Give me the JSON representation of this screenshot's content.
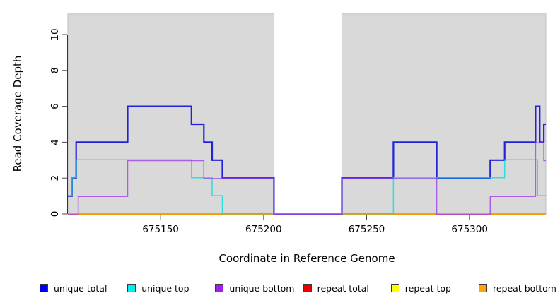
{
  "figure": {
    "background": "#ffffff",
    "plot_background": "#d9d9d9",
    "axis_color": "#333333",
    "tick_color": "#4d4d4d"
  },
  "chart_data": {
    "type": "line",
    "subtype": "step",
    "title": "",
    "xlabel": "Coordinate in Reference Genome",
    "ylabel": "Read Coverage Depth",
    "xlim": [
      675105,
      675337
    ],
    "ylim": [
      0,
      11.15
    ],
    "x_ticks": [
      675150,
      675200,
      675250,
      675300
    ],
    "y_ticks": [
      0,
      2,
      4,
      6,
      8,
      10
    ],
    "grid": false,
    "legend_position": "bottom",
    "plot_background": "#d9d9d9",
    "masked_white_region": {
      "x_start": 675205,
      "x_end": 675238
    },
    "series": [
      {
        "name": "unique total",
        "swatch_color": "#0000ee",
        "line_color": "#2222dd",
        "line_width": 2.2,
        "opacity": 1,
        "points": [
          [
            675105,
            1
          ],
          [
            675107,
            2
          ],
          [
            675109,
            4
          ],
          [
            675134,
            6
          ],
          [
            675165,
            5
          ],
          [
            675171,
            4
          ],
          [
            675175,
            3
          ],
          [
            675180,
            2
          ],
          [
            675205,
            0
          ],
          [
            675238,
            2
          ],
          [
            675263,
            4
          ],
          [
            675284,
            2
          ],
          [
            675310,
            3
          ],
          [
            675317,
            4
          ],
          [
            675332,
            6
          ],
          [
            675334,
            4
          ],
          [
            675336,
            5
          ],
          [
            675337,
            5
          ]
        ]
      },
      {
        "name": "unique top",
        "swatch_color": "#00eeee",
        "line_color": "#00dede",
        "line_width": 1.5,
        "opacity": 0.8,
        "points": [
          [
            675105,
            1
          ],
          [
            675107,
            2
          ],
          [
            675109,
            3
          ],
          [
            675165,
            2
          ],
          [
            675175,
            1
          ],
          [
            675180,
            0
          ],
          [
            675263,
            2
          ],
          [
            675317,
            3
          ],
          [
            675333,
            1
          ],
          [
            675337,
            1
          ]
        ]
      },
      {
        "name": "unique bottom",
        "swatch_color": "#a020f0",
        "line_color": "#a040e8",
        "line_width": 1.5,
        "opacity": 0.8,
        "points": [
          [
            675105,
            0
          ],
          [
            675110,
            1
          ],
          [
            675134,
            3
          ],
          [
            675171,
            2
          ],
          [
            675205,
            0
          ],
          [
            675238,
            2
          ],
          [
            675284,
            0
          ],
          [
            675310,
            1
          ],
          [
            675332,
            4
          ],
          [
            675336,
            3
          ],
          [
            675337,
            3
          ]
        ]
      },
      {
        "name": "repeat total",
        "swatch_color": "#ee0000",
        "line_color": "#dd2222",
        "line_width": 1.5,
        "opacity": 1,
        "points": [
          [
            675105,
            0
          ],
          [
            675337,
            0
          ]
        ]
      },
      {
        "name": "repeat top",
        "swatch_color": "#ffff00",
        "line_color": "#f0e000",
        "line_width": 1.5,
        "opacity": 1,
        "points": [
          [
            675105,
            0
          ],
          [
            675337,
            0
          ]
        ]
      },
      {
        "name": "repeat bottom",
        "swatch_color": "#ffa500",
        "line_color": "#ff9d00",
        "line_width": 1.8,
        "opacity": 1,
        "points": [
          [
            675105,
            0
          ],
          [
            675337,
            0
          ]
        ]
      }
    ]
  },
  "legend": {
    "items": [
      {
        "label": "unique total",
        "color": "#0000ee"
      },
      {
        "label": "unique top",
        "color": "#00eeee"
      },
      {
        "label": "unique bottom",
        "color": "#a020f0"
      },
      {
        "label": "repeat total",
        "color": "#ee0000"
      },
      {
        "label": "repeat top",
        "color": "#ffff00"
      },
      {
        "label": "repeat bottom",
        "color": "#ffa500"
      }
    ]
  }
}
